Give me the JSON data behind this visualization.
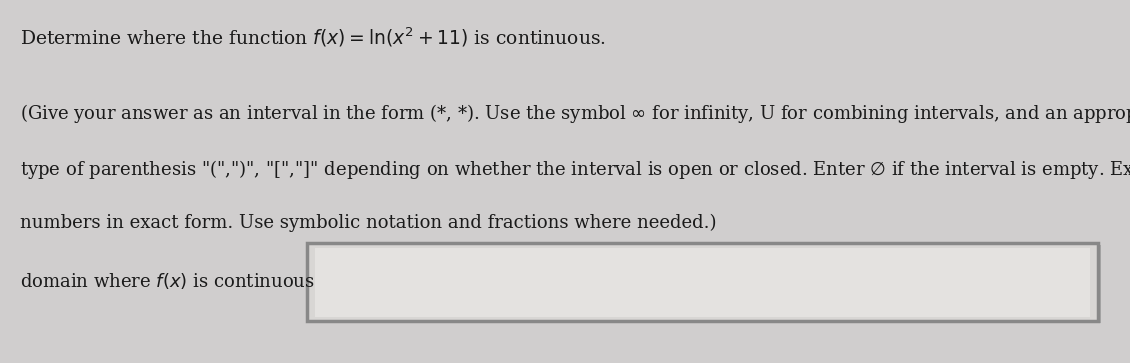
{
  "bg_color": "#d0cece",
  "panel_color": "#e8e6e4",
  "title_line": "Determine where the function $f(x) = \\ln(x^2 + 11)$ is continuous.",
  "instruction_line1": "(Give your answer as an interval in the form (*, *). Use the symbol $\\infty$ for infinity, U for combining intervals, and an appropriate",
  "instruction_line2": "type of parenthesis \"(\",\")\", \"[\",\"]\" depending on whether the interval is open or closed. Enter $\\varnothing$ if the interval is empty. Express",
  "instruction_line3": "numbers in exact form. Use symbolic notation and fractions where needed.)",
  "label_text": "domain where $f(x)$ is continuous:",
  "title_fontsize": 13.5,
  "instruction_fontsize": 13.0,
  "label_fontsize": 13.0,
  "text_color": "#1a1a1a",
  "box_facecolor": "#d8d6d4",
  "box_inner_facecolor": "#e4e2e0",
  "box_edgecolor": "#999999"
}
